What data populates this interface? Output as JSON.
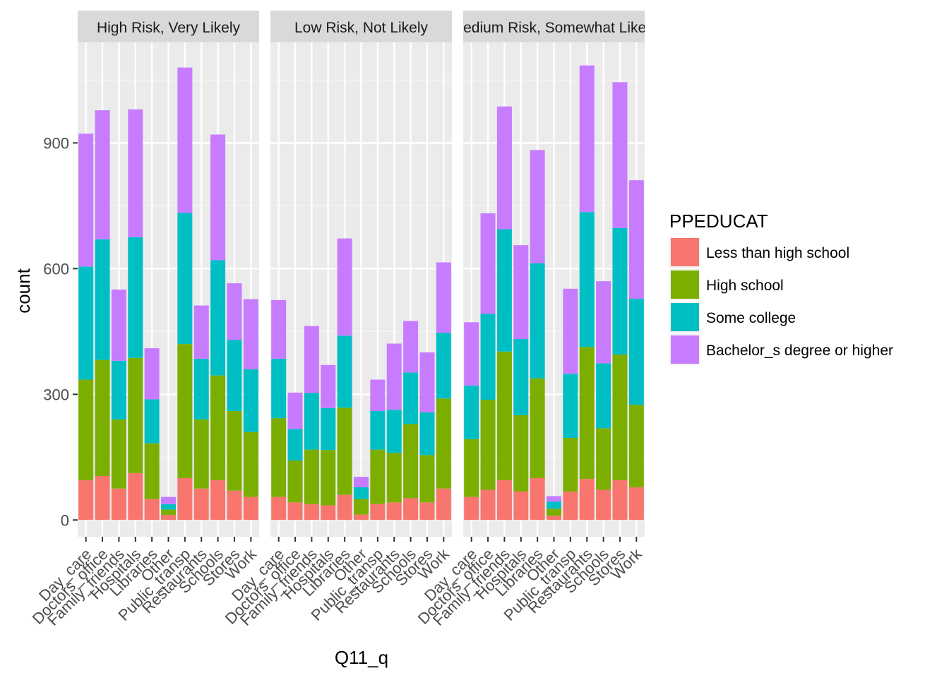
{
  "chart_data": {
    "type": "bar",
    "stacked": true,
    "xlabel": "Q11_q",
    "ylabel": "count",
    "ylim": [
      -40,
      1140
    ],
    "y_ticks": [
      0,
      300,
      600,
      900
    ],
    "grid": true,
    "legend_position": "right",
    "legend": {
      "title": "PPEDUCAT",
      "entries": [
        {
          "name": "Less than high school",
          "color": "#F8766D"
        },
        {
          "name": "High school",
          "color": "#7CAE00"
        },
        {
          "name": "Some college",
          "color": "#00BFC4"
        },
        {
          "name": "Bachelor_s degree or higher",
          "color": "#C77CFF"
        }
      ]
    },
    "categories": [
      "Day_care",
      "Doctors_office",
      "Family_friends",
      "Hospitals",
      "Libraries",
      "Other",
      "Public_transp",
      "Restaurants",
      "Schools",
      "Stores",
      "Work"
    ],
    "facets": [
      {
        "label": "High Risk, Very Likely",
        "series": [
          {
            "name": "Less than high school",
            "values": [
              95,
              105,
              75,
              112,
              50,
              12,
              100,
              75,
              95,
              70,
              55
            ]
          },
          {
            "name": "High school",
            "values": [
              240,
              277,
              165,
              275,
              133,
              13,
              320,
              165,
              250,
              190,
              155
            ]
          },
          {
            "name": "Some college",
            "values": [
              270,
              288,
              140,
              288,
              105,
              13,
              313,
              145,
              275,
              170,
              150
            ]
          },
          {
            "name": "Bachelor_s degree or higher",
            "values": [
              317,
              308,
              170,
              305,
              122,
              17,
              347,
              127,
              300,
              135,
              167
            ]
          }
        ]
      },
      {
        "label": "Low Risk, Not Likely",
        "series": [
          {
            "name": "Less than high school",
            "values": [
              55,
              42,
              38,
              35,
              60,
              13,
              38,
              42,
              52,
              42,
              75
            ]
          },
          {
            "name": "High school",
            "values": [
              188,
              100,
              130,
              132,
              208,
              37,
              130,
              118,
              177,
              113,
              215
            ]
          },
          {
            "name": "Some college",
            "values": [
              142,
              75,
              135,
              100,
              172,
              28,
              92,
              103,
              123,
              102,
              157
            ]
          },
          {
            "name": "Bachelor_s degree or higher",
            "values": [
              140,
              87,
              160,
              103,
              232,
              25,
              75,
              158,
              123,
              143,
              168
            ]
          }
        ]
      },
      {
        "label": "Medium Risk, Somewhat Likely",
        "series": [
          {
            "name": "Less than high school",
            "values": [
              55,
              72,
              95,
              68,
              100,
              10,
              68,
              98,
              72,
              95,
              78
            ]
          },
          {
            "name": "High school",
            "values": [
              138,
              215,
              307,
              182,
              238,
              17,
              128,
              315,
              147,
              300,
              197
            ]
          },
          {
            "name": "Some college",
            "values": [
              128,
              205,
              292,
              182,
              275,
              17,
              153,
              322,
              155,
              302,
              253
            ]
          },
          {
            "name": "Bachelor_s degree or higher",
            "values": [
              151,
              240,
              293,
              224,
              270,
              13,
              203,
              350,
              196,
              348,
              283
            ]
          }
        ]
      }
    ]
  }
}
